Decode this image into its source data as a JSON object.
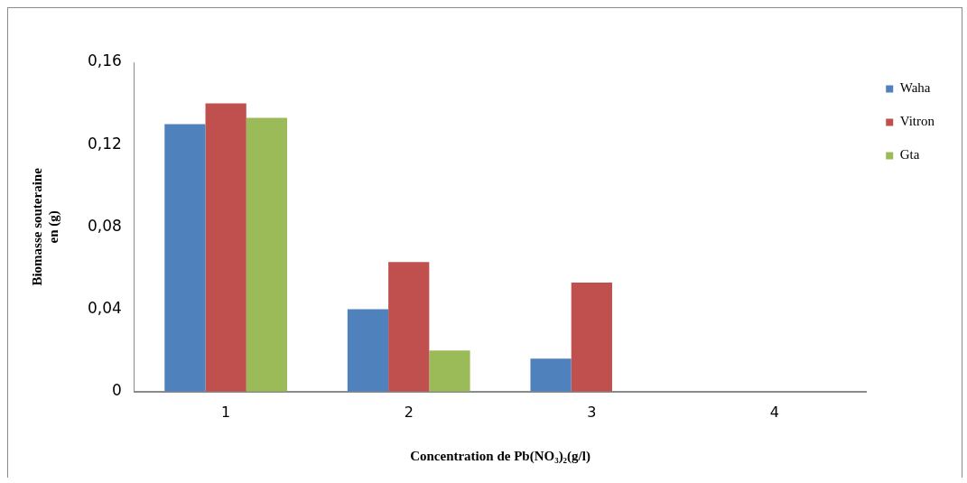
{
  "chart_data": {
    "type": "bar",
    "xlabel": "Concentration de Pb(NO₃)₂(g/l)",
    "ylabel": "Biomasse souteraine\nen (g)",
    "categories": [
      "1",
      "2",
      "3",
      "4"
    ],
    "series": [
      {
        "name": "Waha",
        "color": "#4f81bd",
        "values": [
          0.13,
          0.04,
          0.016,
          0
        ]
      },
      {
        "name": "Vitron",
        "color": "#c0504d",
        "values": [
          0.14,
          0.063,
          0.053,
          0
        ]
      },
      {
        "name": "Gta",
        "color": "#9bbb59",
        "values": [
          0.133,
          0.02,
          0,
          0
        ]
      }
    ],
    "ylim": [
      0,
      0.16
    ],
    "yticks": [
      {
        "value": 0,
        "label": "0"
      },
      {
        "value": 0.04,
        "label": "0,04"
      },
      {
        "value": 0.08,
        "label": "0,08"
      },
      {
        "value": 0.12,
        "label": "0,12"
      },
      {
        "value": 0.16,
        "label": "0,16"
      }
    ],
    "grid": false,
    "legend": "right"
  }
}
